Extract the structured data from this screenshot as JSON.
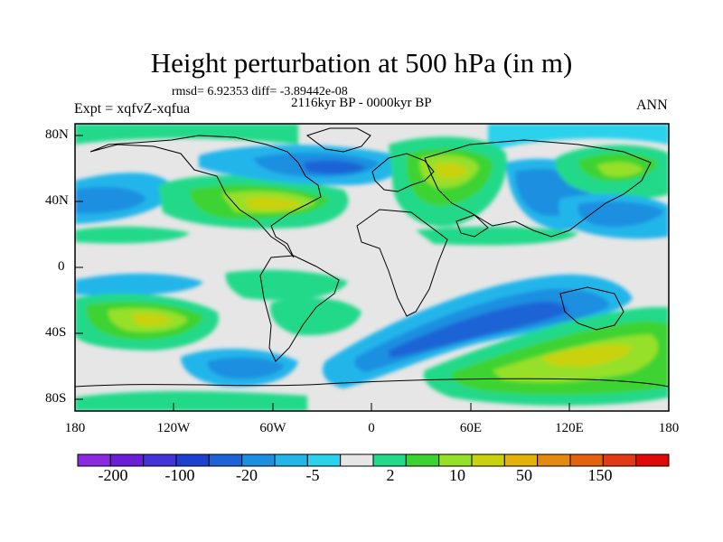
{
  "title": "Height perturbation at 500 hPa (in m)",
  "stats_text": "rmsd= 6.92353 diff= -3.89442e-08",
  "time_text": "2116kyr BP - 0000kyr BP",
  "experiment_text": "Expt = xqfvZ-xqfua",
  "season": "ANN",
  "lat_labels": [
    "80N",
    "40N",
    "0",
    "40S",
    "80S"
  ],
  "lon_labels": [
    "180",
    "120W",
    "60W",
    "0",
    "60E",
    "120E",
    "180"
  ],
  "colorbar": {
    "colors": [
      "#8a2be2",
      "#6a1fd6",
      "#4433d8",
      "#1f3fcf",
      "#1d63d6",
      "#1d8fe0",
      "#22b5ea",
      "#2ad2ec",
      "#e6e6e6",
      "#23d98a",
      "#3cd332",
      "#96e02a",
      "#c9d20c",
      "#e4b10a",
      "#e48a10",
      "#e4620d",
      "#e23a16",
      "#e00a0a"
    ],
    "labels": [
      "-200",
      "-100",
      "-20",
      "-5",
      "2",
      "10",
      "50",
      "150"
    ]
  }
}
